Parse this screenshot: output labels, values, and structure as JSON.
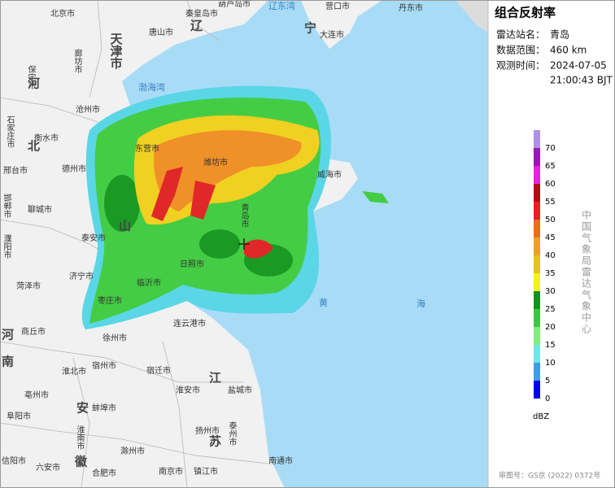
{
  "header": {
    "title": "组合反射率",
    "station_label": "雷达站名：",
    "station": "青岛",
    "range_label": "数据范围：",
    "range": "460 km",
    "time_label": "观测时间：",
    "date": "2024-07-05",
    "time": "21:00:43 BJT"
  },
  "legend": {
    "unit": "dBZ",
    "ticks": [
      0,
      5,
      10,
      15,
      20,
      25,
      30,
      35,
      40,
      45,
      50,
      55,
      60,
      65,
      70
    ],
    "colors": [
      "#0000f0",
      "#3c9ee8",
      "#6ee6ea",
      "#7ef07a",
      "#3cc83c",
      "#109418",
      "#f6f020",
      "#e6c418",
      "#f0a020",
      "#f06a18",
      "#e82020",
      "#b80c14",
      "#f020e0",
      "#9a18b8",
      "#b090e8"
    ]
  },
  "credit": "中国气象局雷达气象中心",
  "approval": "审图号：GS京 (2022) 0372号",
  "map_labels": [
    "北京市",
    "秦皇岛市",
    "葫芦岛市",
    "营口市",
    "丹东市",
    "唐山市",
    "天津市",
    "廊坊市",
    "保定市",
    "河",
    "北",
    "辽",
    "宁",
    "大连市",
    "渤海湾",
    "辽东湾",
    "沧州市",
    "石家庄市",
    "衡水市",
    "德州市",
    "邢台市",
    "东营市",
    "潍坊市",
    "威海市",
    "邯郸市",
    "聊城市",
    "山",
    "泰安市",
    "青岛市",
    "濮阳市",
    "日照市",
    "济宁市",
    "菏泽市",
    "临沂市",
    "枣庄市",
    "黄",
    "海",
    "连云港市",
    "商丘市",
    "河",
    "徐州市",
    "南",
    "宿州市",
    "淮北市",
    "宿迁市",
    "江",
    "亳州市",
    "淮安市",
    "盐城市",
    "安",
    "蚌埠市",
    "阜阳市",
    "淮南市",
    "扬州市",
    "泰州市",
    "苏",
    "滁州市",
    "信阳市",
    "六安市",
    "徽",
    "合肥市",
    "南京市",
    "镇江市",
    "南通市"
  ]
}
